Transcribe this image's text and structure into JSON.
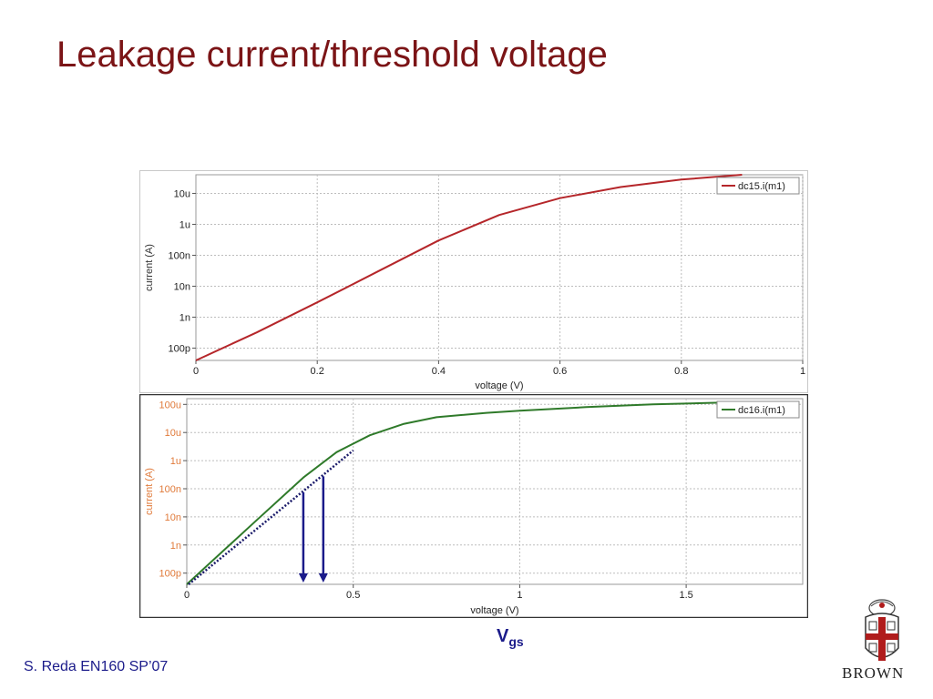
{
  "slide": {
    "title": "Leakage current/threshold voltage",
    "footer": "S. Reda EN160 SP’07",
    "annotation_main": "V",
    "annotation_sub": "gs",
    "logo_text": "BROWN"
  },
  "chart_data": [
    {
      "type": "line",
      "xlabel": "voltage (V)",
      "ylabel": "current (A)",
      "xlim": [
        0,
        1
      ],
      "x_ticks": [
        "0",
        "0.2",
        "0.4",
        "0.6",
        "0.8",
        "1"
      ],
      "y_ticks": [
        "10u",
        "1u",
        "100n",
        "10n",
        "1n",
        "100p"
      ],
      "y_scale": "log",
      "grid": true,
      "legend_position": "top-right",
      "series": [
        {
          "name": "dc15.i(m1)",
          "color": "#b5262a",
          "x": [
            0,
            0.1,
            0.2,
            0.3,
            0.4,
            0.5,
            0.6,
            0.7,
            0.8,
            0.9
          ],
          "y": [
            4e-11,
            3.2e-10,
            3e-09,
            3e-08,
            3e-07,
            2e-06,
            7e-06,
            1.6e-05,
            2.8e-05,
            4e-05
          ]
        }
      ]
    },
    {
      "type": "line",
      "xlabel": "voltage (V)",
      "ylabel": "current (A)",
      "xlim": [
        0,
        1.85
      ],
      "x_ticks": [
        "0",
        "0.5",
        "1",
        "1.5"
      ],
      "y_ticks": [
        "100u",
        "10u",
        "1u",
        "100n",
        "10n",
        "1n",
        "100p"
      ],
      "y_scale": "log",
      "grid": true,
      "legend_position": "top-right",
      "series": [
        {
          "name": "dc16.i(m1)",
          "color": "#2f7a2a",
          "x": [
            0,
            0.2,
            0.35,
            0.45,
            0.55,
            0.65,
            0.75,
            0.9,
            1.0,
            1.2,
            1.4,
            1.6
          ],
          "y": [
            4e-11,
            6e-09,
            2.5e-07,
            2e-06,
            8e-06,
            2e-05,
            3.5e-05,
            5e-05,
            6e-05,
            8e-05,
            0.0001,
            0.000115
          ]
        }
      ],
      "annotations": {
        "tangent_color": "#1b1b6a",
        "arrow_color": "#1b1b8a",
        "arrow_x": [
          0.35,
          0.41
        ]
      }
    }
  ]
}
